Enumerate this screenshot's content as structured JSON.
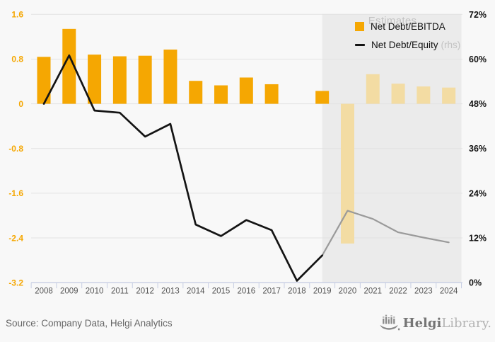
{
  "chart_data": {
    "type": "bar",
    "title": "",
    "categories": [
      2008,
      2009,
      2010,
      2011,
      2012,
      2013,
      2014,
      2015,
      2016,
      2017,
      2018,
      2019,
      2020,
      2021,
      2022,
      2023,
      2024
    ],
    "series": [
      {
        "name": "Net Debt/EBITDA",
        "type": "bar",
        "axis": "left",
        "estimate_from": 2020,
        "values": [
          0.84,
          1.34,
          0.88,
          0.85,
          0.86,
          0.97,
          0.41,
          0.33,
          0.47,
          0.35,
          null,
          0.23,
          -2.5,
          0.53,
          0.36,
          0.31,
          0.29
        ]
      },
      {
        "name": "Net Debt/Equity (rhs)",
        "type": "line",
        "axis": "right",
        "unit": "%",
        "estimate_from": 2019,
        "values": [
          48.0,
          61.0,
          46.2,
          45.6,
          39.2,
          42.6,
          15.6,
          12.5,
          16.8,
          14.1,
          0.5,
          7.3,
          19.3,
          17.1,
          13.5,
          12.1,
          10.8
        ]
      }
    ],
    "left_axis": {
      "tick_labels": [
        "1.6",
        "0.8",
        "0",
        "-0.8",
        "-1.6",
        "-2.4",
        "-3.2"
      ],
      "min": -3.2,
      "max": 1.6
    },
    "right_axis": {
      "tick_labels": [
        "72%",
        "60%",
        "48%",
        "36%",
        "24%",
        "12%",
        "0%"
      ],
      "min": 0,
      "max": 72
    },
    "estimates_region": {
      "label": "Estimates",
      "from_year": 2019,
      "to_year": 2024
    },
    "grid": true,
    "legend_position": "top-right"
  },
  "legend": {
    "items": [
      {
        "label": "Net Debt/EBITDA",
        "swatch": "square"
      },
      {
        "label": "Net Debt/Equity",
        "suffix": "(rhs)",
        "swatch": "line"
      }
    ]
  },
  "footer": {
    "source": "Source: Company Data, Helgi Analytics",
    "logo_text": "Helgi",
    "logo_suffix": "Library."
  },
  "colors": {
    "bar": "#F5A702",
    "bar_estimate": "#F3DCA3",
    "line": "#141414",
    "line_estimate": "#9A9A9A",
    "left_axis_labels": "#F5A702",
    "right_axis_labels": "#111111",
    "year_labels": "#555555",
    "gridline": "#E2E2E2",
    "axis_line": "#C7CEE3",
    "estimates_bg": "#EBEBEB",
    "page_bg": "#F8F8F8",
    "estimates_label": "#C3C3C3",
    "source_text": "#666666",
    "logo_primary": "#757575",
    "logo_secondary": "#B4B4B4"
  }
}
